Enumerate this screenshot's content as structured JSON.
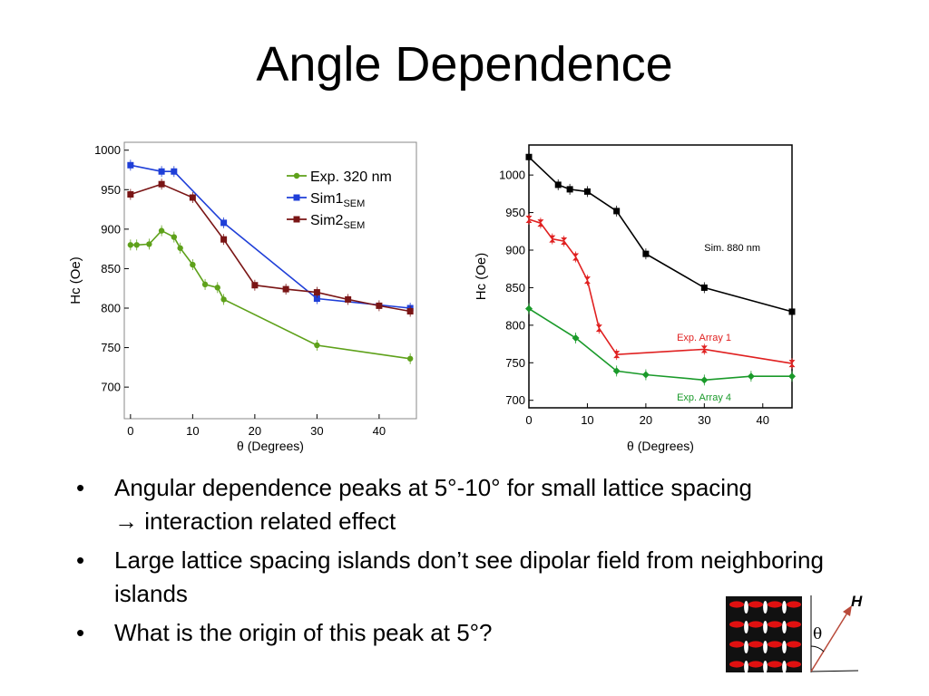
{
  "slide": {
    "title": "Angle Dependence",
    "bullets": [
      {
        "text": "Angular dependence peaks at 5°-10° for small lattice spacing",
        "arrow_glyph": "→",
        "arrow_text": " interaction related effect"
      },
      {
        "text": "Large lattice spacing islands don’t see dipolar field from neighboring islands"
      },
      {
        "text": "What is the origin of this peak at 5°?"
      }
    ],
    "bullet_glyph": "•"
  },
  "diagram": {
    "field_label": "H",
    "angle_label": "θ",
    "island_color": "#e01010",
    "grid_bg": "#111111"
  },
  "chart_data": [
    {
      "type": "line",
      "xlabel": "θ (Degrees)",
      "ylabel": "Hc (Oe)",
      "xlim": [
        -1,
        46
      ],
      "ylim": [
        660,
        1010
      ],
      "xticks": [
        0,
        10,
        20,
        30,
        40
      ],
      "yticks": [
        700,
        750,
        800,
        850,
        900,
        950,
        1000
      ],
      "legend_placement": "top-right",
      "grid": false,
      "series": [
        {
          "name": "Exp. 320 nm",
          "color": "#5ea11a",
          "marker": "circle",
          "x": [
            0,
            1,
            3,
            5,
            7,
            8,
            10,
            12,
            14,
            15,
            30,
            45
          ],
          "y": [
            880,
            880,
            881,
            898,
            890,
            876,
            855,
            830,
            826,
            811,
            753,
            736
          ]
        },
        {
          "name": "Sim1",
          "name_sub": "SEM",
          "color": "#1f3fd8",
          "marker": "square",
          "x": [
            0,
            5,
            7,
            15,
            30,
            45
          ],
          "y": [
            981,
            973,
            973,
            908,
            812,
            800
          ]
        },
        {
          "name": "Sim2",
          "name_sub": "SEM",
          "color": "#7a1515",
          "marker": "square",
          "x": [
            0,
            5,
            10,
            15,
            20,
            25,
            30,
            35,
            40,
            45
          ],
          "y": [
            944,
            957,
            940,
            887,
            829,
            824,
            820,
            811,
            803,
            796
          ]
        }
      ]
    },
    {
      "type": "line",
      "xlabel": "θ (Degrees)",
      "ylabel": "Hc (Oe)",
      "xlim": [
        0,
        45
      ],
      "ylim": [
        690,
        1040
      ],
      "xticks": [
        0,
        10,
        20,
        30,
        40
      ],
      "yticks": [
        700,
        750,
        800,
        850,
        900,
        950,
        1000
      ],
      "grid": false,
      "series": [
        {
          "name": "Sim. 880 nm",
          "color": "#000000",
          "marker": "square",
          "x": [
            0,
            5,
            7,
            10,
            15,
            20,
            30,
            45
          ],
          "y": [
            1024,
            987,
            981,
            978,
            952,
            895,
            850,
            818
          ]
        },
        {
          "name": "Exp. Array 1",
          "color": "#e02020",
          "marker": "star",
          "x": [
            0,
            2,
            4,
            6,
            8,
            10,
            12,
            15,
            30,
            45
          ],
          "y": [
            941,
            936,
            915,
            912,
            891,
            860,
            796,
            761,
            768,
            749
          ]
        },
        {
          "name": "Exp. Array 4",
          "color": "#1a9a2a",
          "marker": "diamond",
          "x": [
            0,
            8,
            15,
            20,
            30,
            38,
            45
          ],
          "y": [
            822,
            783,
            739,
            734,
            727,
            732,
            732
          ]
        }
      ]
    }
  ]
}
